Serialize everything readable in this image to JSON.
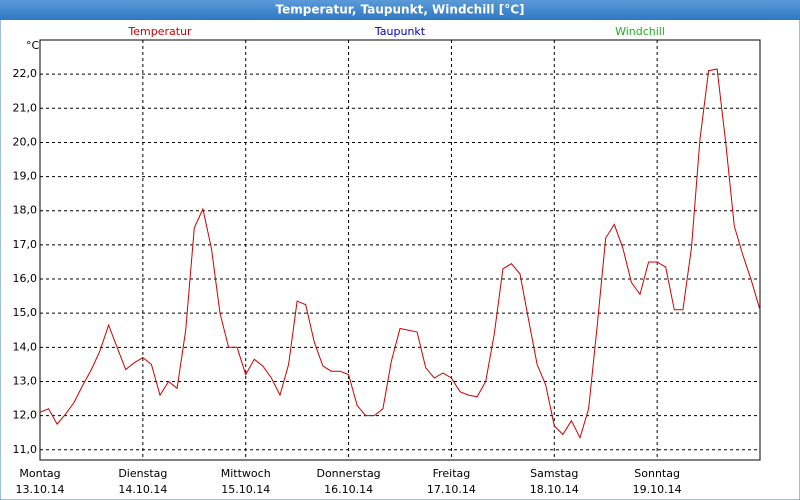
{
  "chart_data": {
    "type": "line",
    "title": "Temperatur, Taupunkt, Windchill [°C]",
    "y_unit": "°C",
    "x": [
      0,
      2,
      4,
      6,
      8,
      10,
      12,
      14,
      16,
      18,
      20,
      22,
      24,
      26,
      28,
      30,
      32,
      34,
      36,
      38,
      40,
      42,
      44,
      46,
      48,
      50,
      52,
      54,
      56,
      58,
      60,
      62,
      64,
      66,
      68,
      70,
      72,
      74,
      76,
      78,
      80,
      82,
      84,
      86,
      88,
      90,
      92,
      94,
      96,
      98,
      100,
      102,
      104,
      106,
      108,
      110,
      112,
      114,
      116,
      118,
      120,
      122,
      124,
      126,
      128,
      130,
      132,
      134,
      136,
      138,
      140,
      142,
      144,
      146,
      148,
      150,
      152,
      154,
      156,
      158,
      160,
      162,
      164,
      166,
      168
    ],
    "series": [
      {
        "name": "Temperatur",
        "color": "#d00000",
        "values": [
          12.1,
          12.2,
          11.75,
          12.05,
          12.4,
          12.9,
          13.35,
          13.9,
          14.65,
          14.0,
          13.35,
          13.55,
          13.7,
          13.5,
          12.6,
          13.0,
          12.8,
          14.5,
          17.5,
          18.05,
          16.9,
          15.0,
          14.0,
          14.0,
          13.2,
          13.65,
          13.45,
          13.1,
          12.6,
          13.5,
          15.35,
          15.25,
          14.15,
          13.45,
          13.3,
          13.3,
          13.2,
          12.3,
          12.0,
          12.0,
          12.2,
          13.6,
          14.55,
          14.5,
          14.45,
          13.4,
          13.1,
          13.25,
          13.1,
          12.7,
          12.6,
          12.55,
          13.0,
          14.4,
          16.3,
          16.45,
          16.15,
          14.8,
          13.5,
          12.9,
          11.7,
          11.45,
          11.85,
          11.35,
          12.2,
          14.6,
          17.2,
          17.6,
          16.9,
          15.9,
          15.55,
          16.5,
          16.5,
          16.35,
          15.1,
          15.1,
          16.9,
          20.1,
          22.1,
          22.15,
          20.0,
          17.55,
          16.7,
          15.95,
          15.1
        ]
      },
      {
        "name": "Taupunkt",
        "color": "#0000c0",
        "values": [
          null,
          null,
          null,
          null,
          null,
          null,
          null,
          null,
          null,
          null,
          null,
          null,
          null,
          null,
          null,
          null,
          null,
          null,
          null,
          null,
          null,
          null,
          null,
          null,
          null,
          null,
          null,
          null,
          null,
          null,
          null,
          null,
          null,
          null,
          null,
          null,
          null,
          null,
          null,
          null,
          null,
          null,
          null,
          null,
          null,
          null,
          null,
          null,
          null,
          null,
          null,
          null,
          null,
          null,
          null,
          null,
          null,
          null,
          null,
          null,
          null,
          null,
          null,
          null,
          null,
          null,
          null,
          null,
          null,
          null,
          null,
          null,
          null,
          null,
          null,
          null,
          null,
          null,
          null,
          null,
          null,
          null,
          null,
          null,
          null
        ]
      },
      {
        "name": "Windchill",
        "color": "#20b020",
        "values": [
          null,
          null,
          null,
          null,
          null,
          null,
          null,
          null,
          null,
          null,
          null,
          null,
          null,
          null,
          null,
          null,
          null,
          null,
          null,
          null,
          null,
          null,
          null,
          null,
          null,
          null,
          null,
          null,
          null,
          null,
          null,
          null,
          null,
          null,
          null,
          null,
          null,
          null,
          null,
          null,
          null,
          null,
          null,
          null,
          null,
          null,
          null,
          null,
          null,
          null,
          null,
          null,
          null,
          null,
          null,
          null,
          null,
          null,
          null,
          null,
          null,
          null,
          null,
          null,
          null,
          null,
          null,
          null,
          null,
          null,
          null,
          null,
          null,
          null,
          null,
          null,
          null,
          null,
          null,
          null,
          null,
          null,
          null,
          null,
          null
        ]
      }
    ],
    "xlim": [
      0,
      168
    ],
    "xticks": [
      {
        "value": 0,
        "label": "13.10.14"
      },
      {
        "value": 24,
        "label": "14.10.14"
      },
      {
        "value": 48,
        "label": "15.10.14"
      },
      {
        "value": 72,
        "label": "16.10.14"
      },
      {
        "value": 96,
        "label": "17.10.14"
      },
      {
        "value": 120,
        "label": "18.10.14"
      },
      {
        "value": 144,
        "label": "19.10.14"
      }
    ],
    "weekdays": [
      "Montag",
      "Dienstag",
      "Mittwoch",
      "Donnerstag",
      "Freitag",
      "Samstag",
      "Sonntag"
    ],
    "ylim": [
      10.7,
      23.0
    ],
    "yticks": [
      {
        "value": 11,
        "label": "11,0"
      },
      {
        "value": 12,
        "label": "12,0"
      },
      {
        "value": 13,
        "label": "13,0"
      },
      {
        "value": 14,
        "label": "14,0"
      },
      {
        "value": 15,
        "label": "15,0"
      },
      {
        "value": 16,
        "label": "16,0"
      },
      {
        "value": 17,
        "label": "17,0"
      },
      {
        "value": 18,
        "label": "18,0"
      },
      {
        "value": 19,
        "label": "19,0"
      },
      {
        "value": 20,
        "label": "20,0"
      },
      {
        "value": 21,
        "label": "21,0"
      },
      {
        "value": 22,
        "label": "22,0"
      }
    ],
    "grid": true
  }
}
